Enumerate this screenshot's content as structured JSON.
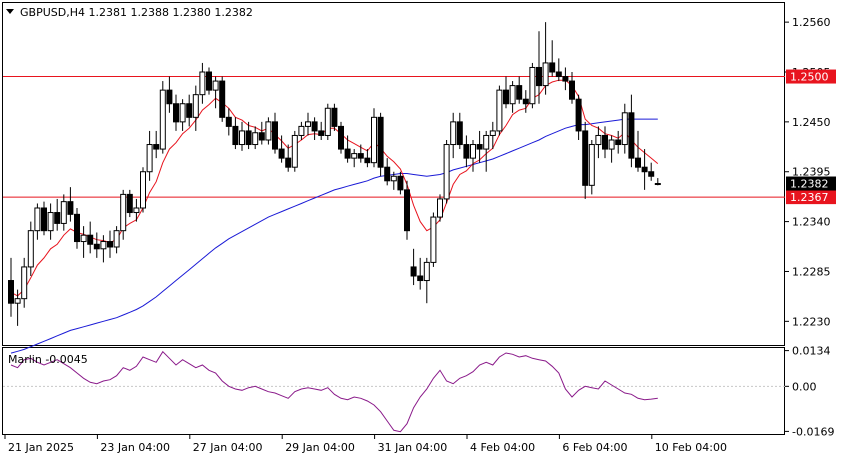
{
  "header": {
    "symbol_line": "GBPUSD,H4  1.2381 1.2388 1.2380 1.2382",
    "indicator_label": "Marlin -0.0045"
  },
  "colors": {
    "ema_fast": "#e8141e",
    "ema_slow": "#1a1ad6",
    "level_line": "#e8141e",
    "oscillator": "#8a1a8a",
    "candle_up": "#ffffff",
    "candle_down": "#000000",
    "price_tag": "#000000",
    "level_tag": "#e8141e"
  },
  "chart_data": {
    "type": "candlestick",
    "symbol": "GBPUSD",
    "timeframe": "H4",
    "y_ticks": [
      "1.2560",
      "1.2505",
      "1.2450",
      "1.2395",
      "1.2340",
      "1.2285",
      "1.2230"
    ],
    "ylim": [
      1.2205,
      1.258
    ],
    "x_ticks": [
      "21 Jan 2025",
      "23 Jan 04:00",
      "27 Jan 04:00",
      "29 Jan 04:00",
      "31 Jan 04:00",
      "4 Feb 04:00",
      "6 Feb 04:00",
      "10 Feb 04:00"
    ],
    "x_tick_bar_index": [
      0,
      14,
      28,
      42,
      56,
      70,
      84,
      98
    ],
    "current_price": "1.2382",
    "levels": [
      {
        "value": 1.25,
        "label": "1.2500"
      },
      {
        "value": 1.2367,
        "label": "1.2367"
      }
    ],
    "candles": [
      [
        1.2275,
        1.23,
        1.2235,
        1.225
      ],
      [
        1.225,
        1.2265,
        1.2225,
        1.2255
      ],
      [
        1.2255,
        1.23,
        1.2245,
        1.229
      ],
      [
        1.229,
        1.234,
        1.228,
        1.233
      ],
      [
        1.233,
        1.236,
        1.232,
        1.2355
      ],
      [
        1.2355,
        1.2362,
        1.2325,
        1.233
      ],
      [
        1.233,
        1.236,
        1.232,
        1.235
      ],
      [
        1.235,
        1.2365,
        1.233,
        1.2338
      ],
      [
        1.2338,
        1.237,
        1.233,
        1.2362
      ],
      [
        1.2362,
        1.2378,
        1.234,
        1.2348
      ],
      [
        1.2348,
        1.2355,
        1.231,
        1.2318
      ],
      [
        1.2318,
        1.2335,
        1.23,
        1.2325
      ],
      [
        1.2325,
        1.234,
        1.2305,
        1.2315
      ],
      [
        1.2315,
        1.2328,
        1.23,
        1.231
      ],
      [
        1.231,
        1.2325,
        1.2295,
        1.2318
      ],
      [
        1.2318,
        1.233,
        1.23,
        1.2312
      ],
      [
        1.2312,
        1.2335,
        1.2305,
        1.233
      ],
      [
        1.233,
        1.2375,
        1.232,
        1.237
      ],
      [
        1.237,
        1.2375,
        1.2345,
        1.235
      ],
      [
        1.235,
        1.2365,
        1.234,
        1.2355
      ],
      [
        1.2355,
        1.24,
        1.235,
        1.2395
      ],
      [
        1.2395,
        1.244,
        1.2385,
        1.2425
      ],
      [
        1.2425,
        1.244,
        1.241,
        1.242
      ],
      [
        1.242,
        1.2495,
        1.2415,
        1.2485
      ],
      [
        1.2485,
        1.25,
        1.246,
        1.247
      ],
      [
        1.247,
        1.248,
        1.244,
        1.245
      ],
      [
        1.245,
        1.2475,
        1.244,
        1.247
      ],
      [
        1.247,
        1.248,
        1.2445,
        1.2455
      ],
      [
        1.2455,
        1.249,
        1.244,
        1.248
      ],
      [
        1.248,
        1.2515,
        1.247,
        1.2505
      ],
      [
        1.2505,
        1.251,
        1.248,
        1.2485
      ],
      [
        1.2485,
        1.25,
        1.2465,
        1.2495
      ],
      [
        1.2495,
        1.25,
        1.245,
        1.2455
      ],
      [
        1.2455,
        1.2465,
        1.2435,
        1.2445
      ],
      [
        1.2445,
        1.2455,
        1.242,
        1.2425
      ],
      [
        1.2425,
        1.245,
        1.2418,
        1.244
      ],
      [
        1.244,
        1.245,
        1.242,
        1.2425
      ],
      [
        1.2425,
        1.2445,
        1.242,
        1.2438
      ],
      [
        1.2438,
        1.245,
        1.2425,
        1.243
      ],
      [
        1.243,
        1.2455,
        1.2425,
        1.245
      ],
      [
        1.245,
        1.246,
        1.2415,
        1.242
      ],
      [
        1.242,
        1.2435,
        1.2405,
        1.241
      ],
      [
        1.241,
        1.2425,
        1.2395,
        1.24
      ],
      [
        1.24,
        1.244,
        1.2395,
        1.2435
      ],
      [
        1.2435,
        1.245,
        1.243,
        1.2445
      ],
      [
        1.2445,
        1.246,
        1.2435,
        1.245
      ],
      [
        1.245,
        1.2455,
        1.243,
        1.244
      ],
      [
        1.244,
        1.245,
        1.243,
        1.2435
      ],
      [
        1.2435,
        1.247,
        1.243,
        1.2465
      ],
      [
        1.2465,
        1.247,
        1.244,
        1.2445
      ],
      [
        1.2445,
        1.245,
        1.2415,
        1.242
      ],
      [
        1.242,
        1.2435,
        1.2405,
        1.241
      ],
      [
        1.241,
        1.242,
        1.24,
        1.2415
      ],
      [
        1.2415,
        1.2425,
        1.2405,
        1.241
      ],
      [
        1.241,
        1.242,
        1.24,
        1.2405
      ],
      [
        1.2405,
        1.2465,
        1.24,
        1.2455
      ],
      [
        1.2455,
        1.246,
        1.239,
        1.24
      ],
      [
        1.24,
        1.241,
        1.238,
        1.2385
      ],
      [
        1.2385,
        1.2395,
        1.2375,
        1.239
      ],
      [
        1.239,
        1.2395,
        1.237,
        1.2375
      ],
      [
        1.2375,
        1.2385,
        1.232,
        1.233
      ],
      [
        1.229,
        1.231,
        1.227,
        1.228
      ],
      [
        1.228,
        1.23,
        1.2265,
        1.2275
      ],
      [
        1.2275,
        1.23,
        1.225,
        1.2295
      ],
      [
        1.2295,
        1.235,
        1.229,
        1.2345
      ],
      [
        1.2345,
        1.237,
        1.234,
        1.2365
      ],
      [
        1.2365,
        1.243,
        1.236,
        1.2425
      ],
      [
        1.2425,
        1.246,
        1.241,
        1.245
      ],
      [
        1.245,
        1.246,
        1.242,
        1.2425
      ],
      [
        1.2425,
        1.2435,
        1.24,
        1.241
      ],
      [
        1.241,
        1.243,
        1.2395,
        1.2425
      ],
      [
        1.2425,
        1.244,
        1.2405,
        1.242
      ],
      [
        1.242,
        1.244,
        1.2395,
        1.2435
      ],
      [
        1.2435,
        1.245,
        1.242,
        1.244
      ],
      [
        1.244,
        1.249,
        1.2435,
        1.2485
      ],
      [
        1.2485,
        1.25,
        1.2465,
        1.247
      ],
      [
        1.247,
        1.2495,
        1.246,
        1.249
      ],
      [
        1.249,
        1.25,
        1.247,
        1.2475
      ],
      [
        1.2475,
        1.2485,
        1.246,
        1.247
      ],
      [
        1.247,
        1.2515,
        1.2465,
        1.251
      ],
      [
        1.251,
        1.255,
        1.247,
        1.249
      ],
      [
        1.249,
        1.256,
        1.248,
        1.2515
      ],
      [
        1.2515,
        1.254,
        1.25,
        1.2505
      ],
      [
        1.2505,
        1.252,
        1.2495,
        1.25
      ],
      [
        1.25,
        1.251,
        1.2485,
        1.2495
      ],
      [
        1.2495,
        1.2505,
        1.247,
        1.2475
      ],
      [
        1.2475,
        1.248,
        1.243,
        1.244
      ],
      [
        1.244,
        1.245,
        1.2365,
        1.238
      ],
      [
        1.238,
        1.243,
        1.237,
        1.2425
      ],
      [
        1.2425,
        1.2445,
        1.241,
        1.2435
      ],
      [
        1.2435,
        1.2445,
        1.241,
        1.242
      ],
      [
        1.242,
        1.2435,
        1.2405,
        1.243
      ],
      [
        1.243,
        1.244,
        1.2415,
        1.2425
      ],
      [
        1.2425,
        1.247,
        1.2415,
        1.246
      ],
      [
        1.246,
        1.248,
        1.24,
        1.241
      ],
      [
        1.241,
        1.244,
        1.2395,
        1.24
      ],
      [
        1.24,
        1.242,
        1.2375,
        1.2395
      ],
      [
        1.2395,
        1.2405,
        1.2385,
        1.239
      ],
      [
        1.2381,
        1.2388,
        1.238,
        1.2382
      ]
    ],
    "ema_fast": [
      1.2262,
      1.2258,
      1.2265,
      1.2278,
      1.2292,
      1.23,
      1.231,
      1.2315,
      1.2325,
      1.2332,
      1.2328,
      1.2326,
      1.2323,
      1.232,
      1.2319,
      1.2317,
      1.232,
      1.2333,
      1.2338,
      1.2342,
      1.2355,
      1.2372,
      1.2384,
      1.2405,
      1.242,
      1.2427,
      1.2437,
      1.2443,
      1.2452,
      1.2463,
      1.2469,
      1.2476,
      1.2471,
      1.2465,
      1.2455,
      1.2452,
      1.2446,
      1.2444,
      1.244,
      1.2443,
      1.2436,
      1.2429,
      1.2421,
      1.2425,
      1.243,
      1.2436,
      1.2437,
      1.2436,
      1.2443,
      1.2443,
      1.2437,
      1.243,
      1.2426,
      1.2422,
      1.2418,
      1.2427,
      1.2421,
      1.2412,
      1.2406,
      1.2398,
      1.2381,
      1.2358,
      1.234,
      1.233,
      1.2334,
      1.2342,
      1.2361,
      1.2381,
      1.2392,
      1.2396,
      1.2404,
      1.2408,
      1.2415,
      1.2421,
      1.2436,
      1.2446,
      1.2458,
      1.2463,
      1.2465,
      1.2476,
      1.248,
      1.249,
      1.2494,
      1.2496,
      1.2496,
      1.249,
      1.2478,
      1.2453,
      1.2446,
      1.2443,
      1.2437,
      1.2435,
      1.2432,
      1.2438,
      1.243,
      1.2422,
      1.2416,
      1.241,
      1.2404
    ],
    "ema_slow": [
      1.2195,
      1.2197,
      1.2199,
      1.2202,
      1.2205,
      1.2208,
      1.2211,
      1.2214,
      1.2217,
      1.222,
      1.2222,
      1.2224,
      1.2226,
      1.2228,
      1.223,
      1.2232,
      1.2234,
      1.2237,
      1.224,
      1.2243,
      1.2247,
      1.2252,
      1.2257,
      1.2263,
      1.2269,
      1.2275,
      1.2281,
      1.2287,
      1.2293,
      1.2299,
      1.2305,
      1.2311,
      1.2316,
      1.2321,
      1.2325,
      1.2329,
      1.2333,
      1.2337,
      1.2341,
      1.2345,
      1.2348,
      1.2351,
      1.2354,
      1.2357,
      1.236,
      1.2363,
      1.2366,
      1.2369,
      1.2372,
      1.2375,
      1.2377,
      1.2379,
      1.2381,
      1.2383,
      1.2385,
      1.2388,
      1.239,
      1.2391,
      1.2392,
      1.2393,
      1.2393,
      1.2392,
      1.2391,
      1.239,
      1.2391,
      1.2392,
      1.2394,
      1.2397,
      1.2399,
      1.2401,
      1.2403,
      1.2405,
      1.2407,
      1.2409,
      1.2412,
      1.2415,
      1.2418,
      1.2421,
      1.2424,
      1.2427,
      1.243,
      1.2434,
      1.2437,
      1.244,
      1.2443,
      1.2445,
      1.2447,
      1.2447,
      1.2448,
      1.2449,
      1.245,
      1.2451,
      1.2452,
      1.2453,
      1.2453,
      1.2453,
      1.2453,
      1.2453,
      1.2453
    ],
    "oscillator": {
      "name": "Marlin",
      "value": "-0.0045",
      "y_ticks": [
        "0.0134",
        "0.00",
        "-0.0169"
      ],
      "ylim": [
        -0.0175,
        0.014
      ],
      "values": [
        0.008,
        0.007,
        0.01,
        0.0105,
        0.009,
        0.008,
        0.009,
        0.01,
        0.0085,
        0.007,
        0.005,
        0.003,
        0.0015,
        0.001,
        0.002,
        0.0025,
        0.004,
        0.007,
        0.006,
        0.0075,
        0.011,
        0.01,
        0.009,
        0.013,
        0.0105,
        0.008,
        0.01,
        0.0085,
        0.007,
        0.008,
        0.006,
        0.005,
        0.002,
        0.0,
        -0.001,
        -0.0015,
        -0.0005,
        0.0,
        -0.001,
        -0.002,
        -0.0025,
        -0.0035,
        -0.0045,
        -0.002,
        -0.001,
        -0.0005,
        -0.001,
        -0.0015,
        -0.0005,
        -0.003,
        -0.0045,
        -0.005,
        -0.004,
        -0.0045,
        -0.0055,
        -0.007,
        -0.0095,
        -0.013,
        -0.0165,
        -0.017,
        -0.014,
        -0.008,
        -0.004,
        -0.001,
        0.003,
        0.006,
        0.002,
        0.001,
        0.003,
        0.004,
        0.0055,
        0.008,
        0.009,
        0.008,
        0.011,
        0.0125,
        0.012,
        0.011,
        0.0115,
        0.0105,
        0.01,
        0.0095,
        0.0075,
        0.005,
        -0.001,
        -0.004,
        -0.0015,
        0.0,
        -0.0005,
        -0.001,
        0.002,
        0.0005,
        -0.001,
        -0.0025,
        -0.003,
        -0.0045,
        -0.005,
        -0.0048,
        -0.0045
      ]
    }
  }
}
